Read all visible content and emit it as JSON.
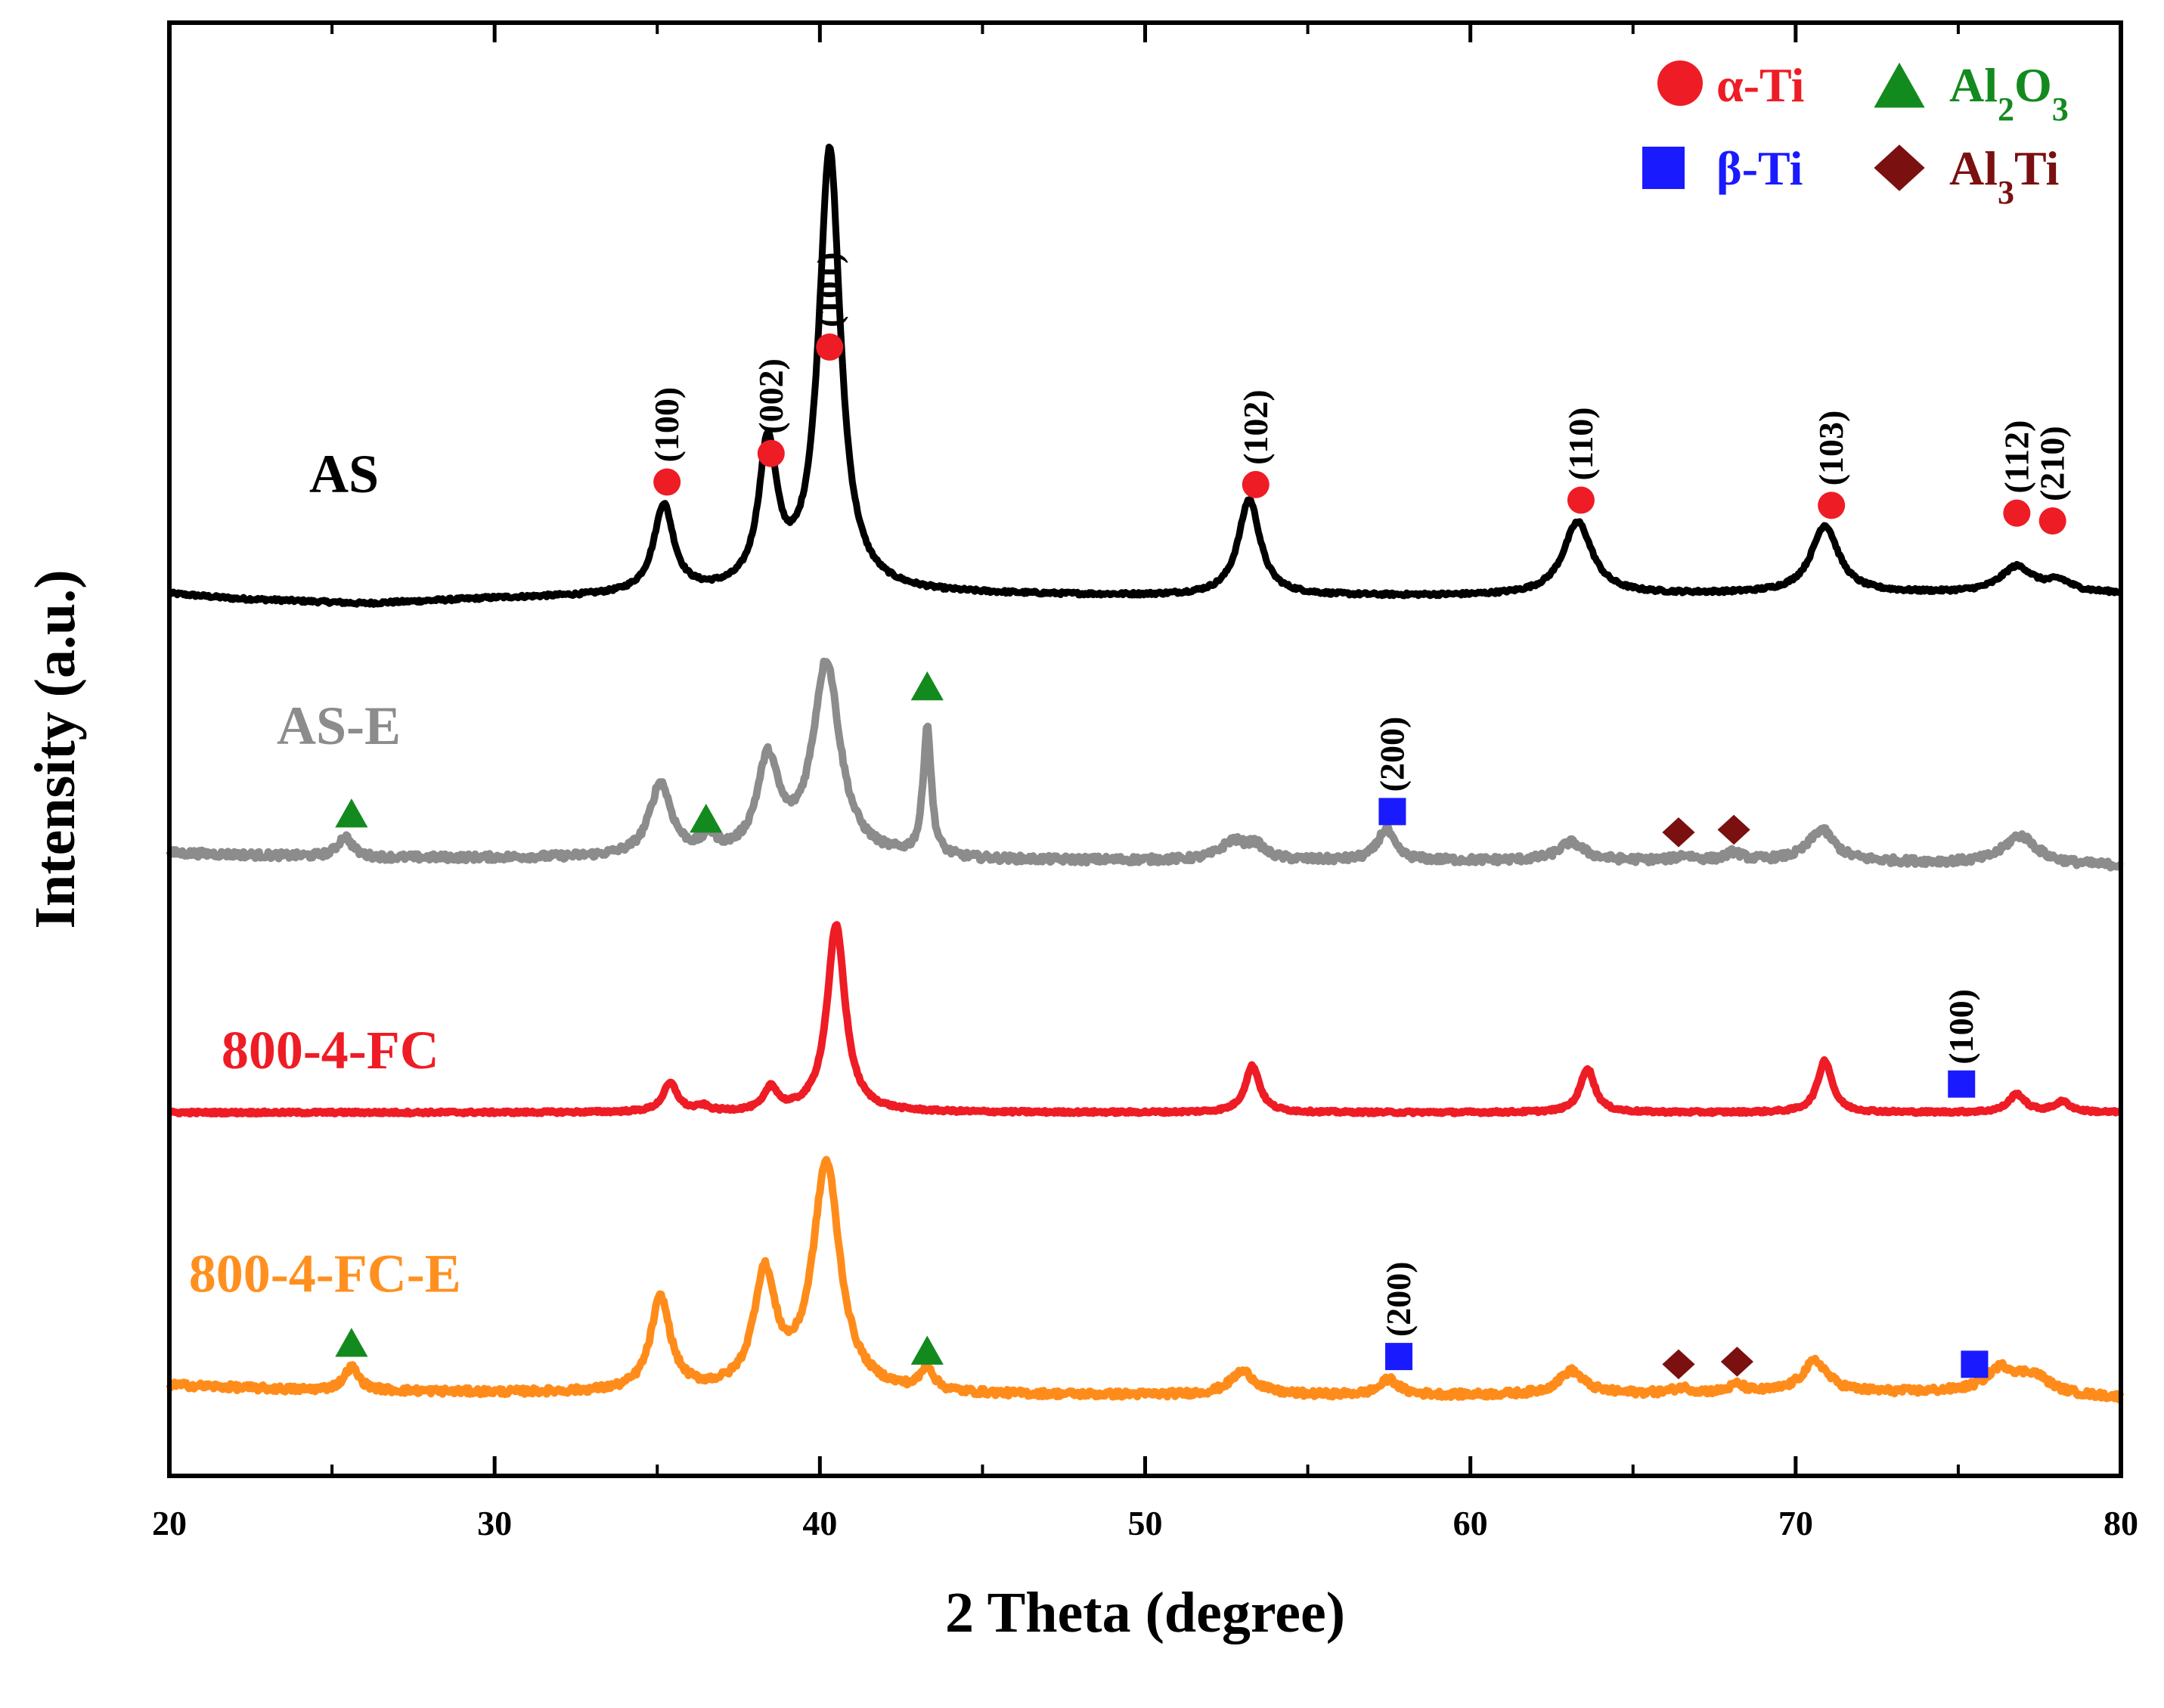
{
  "chart_data": {
    "type": "line",
    "title": "",
    "xlabel": "2 Theta (degree)",
    "ylabel": "Intensity (a.u.)",
    "xlim": [
      20,
      80
    ],
    "xticks": [
      20,
      30,
      40,
      50,
      60,
      70,
      80
    ],
    "y_ticks_shown": false,
    "colors": {
      "alpha_Ti": "#ee1c25",
      "beta_Ti": "#1a1aff",
      "Al2O3": "#138a1e",
      "Al3Ti": "#7a1010"
    },
    "legend": {
      "position": "top-right",
      "entries": [
        {
          "label": "α-Ti",
          "marker": "circle",
          "color_key": "alpha_Ti"
        },
        {
          "label": "Al2O3",
          "base": "Al",
          "sub1": "2",
          "mid": "O",
          "sub2": "3",
          "marker": "triangle",
          "color_key": "Al2O3"
        },
        {
          "label": "β-Ti",
          "marker": "square",
          "color_key": "beta_Ti"
        },
        {
          "label": "Al3Ti",
          "base": "Al",
          "sub1": "3",
          "mid": "Ti",
          "sub2": "",
          "marker": "diamond",
          "color_key": "Al3Ti"
        }
      ]
    },
    "series": [
      {
        "name": "AS",
        "label_color": "#000000",
        "color": "#000000",
        "baseline": 100,
        "noise": 0.6,
        "label_x": 24.3,
        "label_y": 139,
        "background": [
          [
            20,
            100
          ],
          [
            22,
            98
          ],
          [
            26,
            96
          ],
          [
            30,
            98
          ],
          [
            34,
            99
          ],
          [
            40,
            100
          ],
          [
            50,
            99
          ],
          [
            60,
            99
          ],
          [
            70,
            100
          ],
          [
            80,
            100
          ]
        ],
        "peaks": [
          {
            "pos": 35.2,
            "height": 34,
            "width": 0.55
          },
          {
            "pos": 38.4,
            "height": 55,
            "width": 0.5
          },
          {
            "pos": 40.3,
            "height": 170,
            "width": 0.6
          },
          {
            "pos": 53.2,
            "height": 37,
            "width": 0.6
          },
          {
            "pos": 63.3,
            "height": 28,
            "width": 0.8
          },
          {
            "pos": 70.9,
            "height": 26,
            "width": 0.75
          },
          {
            "pos": 76.8,
            "height": 10,
            "width": 0.9
          },
          {
            "pos": 78.1,
            "height": 4,
            "width": 0.7
          }
        ],
        "markers": [
          {
            "x": 35.3,
            "y": 143,
            "type": "circle",
            "hkl": "(100)"
          },
          {
            "x": 38.5,
            "y": 154,
            "type": "circle",
            "hkl": "(002)"
          },
          {
            "x": 40.3,
            "y": 195,
            "type": "circle",
            "hkl": "(101)"
          },
          {
            "x": 53.4,
            "y": 142,
            "type": "circle",
            "hkl": "(102)"
          },
          {
            "x": 63.4,
            "y": 136,
            "type": "circle",
            "hkl": "(110)"
          },
          {
            "x": 71.1,
            "y": 134,
            "type": "circle",
            "hkl": "(103)"
          },
          {
            "x": 76.8,
            "y": 131,
            "type": "circle",
            "hkl": "(112)"
          },
          {
            "x": 77.9,
            "y": 128,
            "type": "circle",
            "hkl": "(210)"
          }
        ]
      },
      {
        "name": "AS-E",
        "label_color": "#8c8c8c",
        "color": "#8c8c8c",
        "baseline": 0,
        "noise": 1.3,
        "label_x": 23.3,
        "label_y": 42,
        "background": [
          [
            20,
            0
          ],
          [
            26,
            -2
          ],
          [
            34,
            -2
          ],
          [
            45,
            -3
          ],
          [
            60,
            -3
          ],
          [
            70,
            -3
          ],
          [
            80,
            -5
          ]
        ],
        "peaks": [
          {
            "pos": 25.4,
            "height": 8,
            "width": 0.4
          },
          {
            "pos": 35.1,
            "height": 28,
            "width": 0.6
          },
          {
            "pos": 36.6,
            "height": 6,
            "width": 0.4
          },
          {
            "pos": 38.4,
            "height": 36,
            "width": 0.6
          },
          {
            "pos": 40.2,
            "height": 75,
            "width": 0.75
          },
          {
            "pos": 43.3,
            "height": 50,
            "width": 0.22
          },
          {
            "pos": 52.7,
            "height": 7,
            "width": 0.7
          },
          {
            "pos": 53.4,
            "height": 5,
            "width": 0.5
          },
          {
            "pos": 57.4,
            "height": 12,
            "width": 0.45
          },
          {
            "pos": 63.1,
            "height": 7,
            "width": 0.7
          },
          {
            "pos": 66.6,
            "height": 2,
            "width": 0.4
          },
          {
            "pos": 68.1,
            "height": 3,
            "width": 0.4
          },
          {
            "pos": 70.8,
            "height": 12,
            "width": 0.7
          },
          {
            "pos": 76.9,
            "height": 11,
            "width": 0.9
          }
        ],
        "markers": [
          {
            "x": 25.6,
            "y": 15,
            "type": "triangle",
            "hkl": ""
          },
          {
            "x": 36.5,
            "y": 13,
            "type": "triangle",
            "hkl": ""
          },
          {
            "x": 43.3,
            "y": 64,
            "type": "triangle",
            "hkl": ""
          },
          {
            "x": 57.6,
            "y": 16,
            "type": "square",
            "hkl": "(200)"
          },
          {
            "x": 66.4,
            "y": 8,
            "type": "diamond",
            "hkl": ""
          },
          {
            "x": 68.1,
            "y": 9,
            "type": "diamond",
            "hkl": ""
          }
        ]
      },
      {
        "name": "800-4-FC",
        "label_color": "#ee1c25",
        "color": "#ee1c25",
        "baseline": -100,
        "noise": 0.5,
        "label_x": 21.6,
        "label_y": -83,
        "background": [
          [
            20,
            -100
          ],
          [
            80,
            -100
          ]
        ],
        "peaks": [
          {
            "pos": 35.4,
            "height": 11,
            "width": 0.4
          },
          {
            "pos": 36.4,
            "height": 2,
            "width": 0.3
          },
          {
            "pos": 38.5,
            "height": 9,
            "width": 0.35
          },
          {
            "pos": 40.5,
            "height": 72,
            "width": 0.5
          },
          {
            "pos": 53.3,
            "height": 18,
            "width": 0.4
          },
          {
            "pos": 63.6,
            "height": 17,
            "width": 0.4
          },
          {
            "pos": 70.9,
            "height": 20,
            "width": 0.4
          },
          {
            "pos": 76.8,
            "height": 7,
            "width": 0.45
          },
          {
            "pos": 78.2,
            "height": 4,
            "width": 0.45
          }
        ],
        "markers": [
          {
            "x": 75.1,
            "y": -89,
            "type": "square",
            "hkl": "(100)"
          }
        ]
      },
      {
        "name": "800-4-FC-E",
        "label_color": "#ff9020",
        "color": "#ff8c1a",
        "baseline": -208,
        "noise": 1.2,
        "label_x": 20.6,
        "label_y": -169,
        "background": [
          [
            20,
            -205
          ],
          [
            24,
            -207
          ],
          [
            30,
            -208
          ],
          [
            45,
            -209
          ],
          [
            60,
            -209
          ],
          [
            70,
            -208
          ],
          [
            75,
            -208
          ],
          [
            80,
            -210
          ]
        ],
        "peaks": [
          {
            "pos": 25.6,
            "height": 9,
            "width": 0.4
          },
          {
            "pos": 35.1,
            "height": 36,
            "width": 0.55
          },
          {
            "pos": 38.3,
            "height": 44,
            "width": 0.6
          },
          {
            "pos": 40.2,
            "height": 88,
            "width": 0.75
          },
          {
            "pos": 43.3,
            "height": 9,
            "width": 0.35
          },
          {
            "pos": 53.0,
            "height": 9,
            "width": 0.7
          },
          {
            "pos": 57.5,
            "height": 6,
            "width": 0.5
          },
          {
            "pos": 63.1,
            "height": 9,
            "width": 0.7
          },
          {
            "pos": 66.5,
            "height": 2,
            "width": 0.5
          },
          {
            "pos": 68.2,
            "height": 3,
            "width": 0.4
          },
          {
            "pos": 70.6,
            "height": 12,
            "width": 0.7
          },
          {
            "pos": 76.3,
            "height": 9,
            "width": 0.8
          },
          {
            "pos": 77.3,
            "height": 7,
            "width": 0.9
          }
        ],
        "markers": [
          {
            "x": 25.6,
            "y": -189,
            "type": "triangle",
            "hkl": ""
          },
          {
            "x": 43.3,
            "y": -192,
            "type": "triangle",
            "hkl": ""
          },
          {
            "x": 57.8,
            "y": -194,
            "type": "square",
            "hkl": "(200)"
          },
          {
            "x": 66.4,
            "y": -197,
            "type": "diamond",
            "hkl": ""
          },
          {
            "x": 68.2,
            "y": -196,
            "type": "diamond",
            "hkl": ""
          },
          {
            "x": 75.5,
            "y": -197,
            "type": "square",
            "hkl": ""
          }
        ]
      }
    ]
  }
}
